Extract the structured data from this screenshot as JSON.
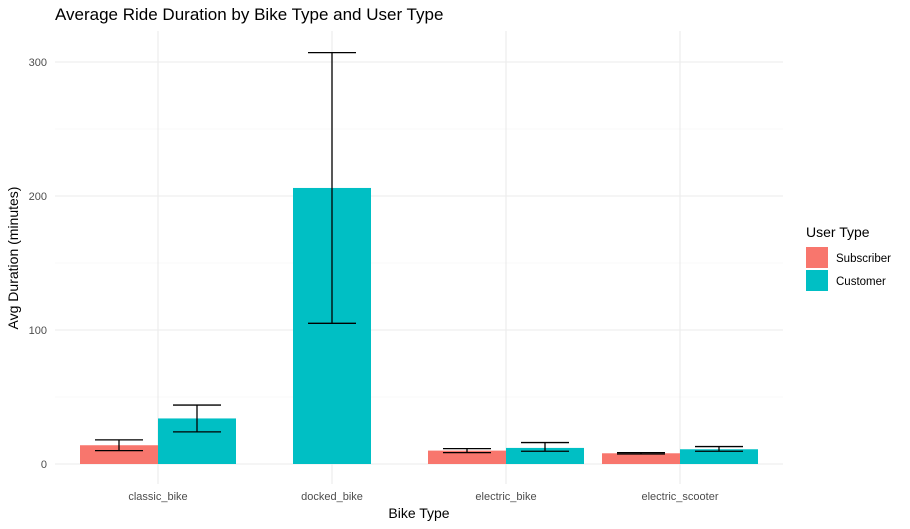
{
  "chart_data": {
    "type": "bar",
    "title": "Average Ride Duration by Bike Type and User Type",
    "xlabel": "Bike Type",
    "ylabel": "Avg Duration (minutes)",
    "categories": [
      "classic_bike",
      "docked_bike",
      "electric_bike",
      "electric_scooter"
    ],
    "ylim": [
      0,
      320
    ],
    "yticks": [
      0,
      100,
      200,
      300
    ],
    "grid": true,
    "legend": {
      "title": "User Type",
      "position": "right"
    },
    "series": [
      {
        "name": "Subscriber",
        "color": "#F8766D",
        "values": [
          14,
          null,
          10,
          8
        ],
        "error_low": [
          10,
          null,
          8.5,
          7.5
        ],
        "error_high": [
          18,
          null,
          11.5,
          8.5
        ]
      },
      {
        "name": "Customer",
        "color": "#00BFC4",
        "values": [
          34,
          206,
          12,
          11
        ],
        "error_low": [
          24,
          105,
          9.5,
          9.5
        ],
        "error_high": [
          44,
          307,
          16,
          13
        ]
      }
    ]
  }
}
